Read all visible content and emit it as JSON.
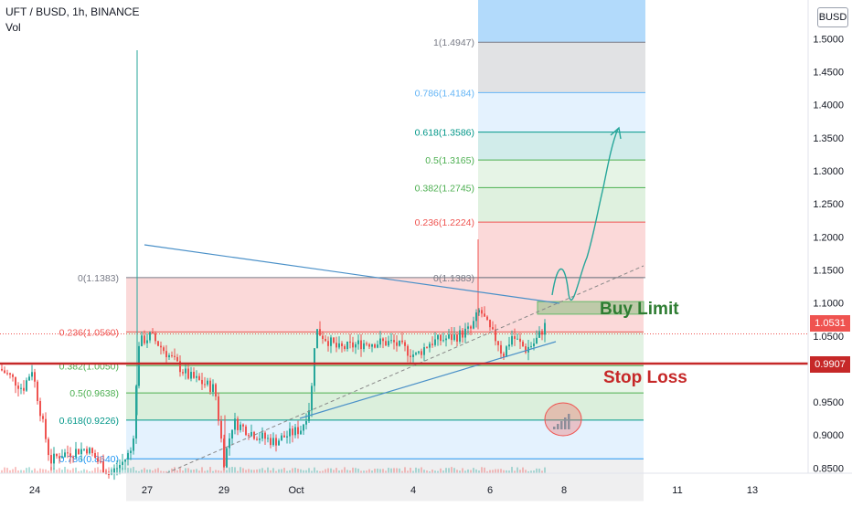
{
  "header": {
    "title": "UFT / BUSD, 1h, BINANCE",
    "indicator": "Vol"
  },
  "currency_badge": "BUSD",
  "colors": {
    "up": "#26a69a",
    "down": "#ef5350",
    "trend": "#4a90c8",
    "stop": "#c62828",
    "buy": "#2e7d32",
    "fib_level": "#7a7a7a"
  },
  "annotations": {
    "buy_limit": "Buy Limit",
    "stop_loss": "Stop Loss"
  },
  "price_tags": [
    {
      "value": "1.0531",
      "color": "#ef5350"
    },
    {
      "value": "0.9907",
      "color": "#c62828"
    }
  ],
  "chart_data": {
    "type": "candlestick",
    "symbol": "UFT / BUSD",
    "timeframe": "1h",
    "exchange": "BINANCE",
    "ylim": [
      0.83,
      1.52
    ],
    "y_ticks": [
      "0.8500",
      "0.9000",
      "0.9500",
      "1.0000",
      "1.0500",
      "1.1000",
      "1.1500",
      "1.2000",
      "1.2500",
      "1.3000",
      "1.3500",
      "1.4000",
      "1.4500",
      "1.5000"
    ],
    "x_ticks": [
      "24",
      "27",
      "29",
      "Oct",
      "4",
      "6",
      "8",
      "11",
      "13"
    ],
    "fib_retracement_lower": [
      {
        "label": "0(1.1383)",
        "value": 1.1383
      },
      {
        "label": "0.236(1.0560)",
        "value": 1.056
      },
      {
        "label": "0.382(1.0050)",
        "value": 1.005
      },
      {
        "label": "0.5(0.9638)",
        "value": 0.9638
      },
      {
        "label": "0.618(0.9226)",
        "value": 0.9226
      },
      {
        "label": "0.786(0.8640)",
        "value": 0.864
      }
    ],
    "fib_extension_upper": [
      {
        "label": "1(1.4947)",
        "value": 1.4947
      },
      {
        "label": "0.786(1.4184)",
        "value": 1.4184
      },
      {
        "label": "0.618(1.3586)",
        "value": 1.3586
      },
      {
        "label": "0.5(1.3165)",
        "value": 1.3165
      },
      {
        "label": "0.382(1.2745)",
        "value": 1.2745
      },
      {
        "label": "0.236(1.2224)",
        "value": 1.2224
      },
      {
        "label": "0(1.1383)",
        "value": 1.1383
      }
    ],
    "horizontal_levels": [
      {
        "name": "current_price",
        "value": 1.0531
      },
      {
        "name": "stop_loss",
        "value": 0.9907
      }
    ],
    "buy_zone": {
      "low": 1.083,
      "high": 1.102
    }
  }
}
